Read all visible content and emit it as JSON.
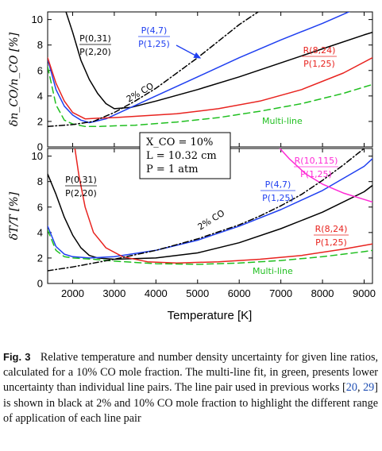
{
  "figure": {
    "number": "Fig. 3",
    "caption_parts": [
      {
        "t": "Relative temperature and number density uncertainty for given line ratios, calculated for a 10% CO mole fraction. The multi-line fit, in green, presents lower uncertainty than individual line pairs. The line pair used in previous works ["
      },
      {
        "t": "20",
        "cite": true
      },
      {
        "t": ", "
      },
      {
        "t": "29",
        "cite": true
      },
      {
        "t": "] is shown in black at 2% and 10% CO mole fraction to highlight the different range of application of each line pair"
      }
    ]
  },
  "conditions_box": [
    "X_CO = 10%",
    "L = 10.32 cm",
    "P = 1 atm"
  ],
  "colors": {
    "black": "#000000",
    "red": "#e8231f",
    "blue": "#1f3ff0",
    "green": "#1fbf1f",
    "magenta": "#ff2bd6"
  },
  "chart_data": [
    {
      "type": "line",
      "panel": "top",
      "ylabel": "δn_CO/n_CO [%]",
      "xlim": [
        1400,
        9200
      ],
      "ylim": [
        0,
        10.6
      ],
      "yticks": [
        0,
        2,
        4,
        6,
        8,
        10
      ],
      "xticks": [
        2000,
        3000,
        4000,
        5000,
        6000,
        7000,
        8000,
        9000
      ],
      "series": [
        {
          "name": "P(0,31) / P(2,20)",
          "color": "black",
          "style": "solid",
          "points": [
            [
              1800,
              11
            ],
            [
              2000,
              9
            ],
            [
              2200,
              6.8
            ],
            [
              2400,
              5.3
            ],
            [
              2600,
              4.2
            ],
            [
              2800,
              3.4
            ],
            [
              3000,
              3.0
            ],
            [
              3400,
              3.1
            ],
            [
              4000,
              3.6
            ],
            [
              5000,
              4.5
            ],
            [
              6000,
              5.5
            ],
            [
              7000,
              6.6
            ],
            [
              8000,
              7.7
            ],
            [
              9000,
              8.8
            ],
            [
              9200,
              9.0
            ]
          ]
        },
        {
          "name": "P(4,7) / P(1,25)",
          "color": "blue",
          "style": "solid",
          "points": [
            [
              1400,
              6.9
            ],
            [
              1600,
              4.5
            ],
            [
              1800,
              3.2
            ],
            [
              2000,
              2.5
            ],
            [
              2200,
              2.1
            ],
            [
              2400,
              1.9
            ],
            [
              2800,
              2.2
            ],
            [
              3200,
              2.8
            ],
            [
              4000,
              4.0
            ],
            [
              5000,
              5.5
            ],
            [
              6000,
              7.0
            ],
            [
              7000,
              8.4
            ],
            [
              8000,
              9.7
            ],
            [
              8700,
              10.7
            ]
          ]
        },
        {
          "name": "R(8,24) / P(1,25)",
          "color": "red",
          "style": "solid",
          "points": [
            [
              1400,
              7.0
            ],
            [
              1600,
              5.0
            ],
            [
              1800,
              3.6
            ],
            [
              2000,
              2.7
            ],
            [
              2300,
              2.2
            ],
            [
              2600,
              2.25
            ],
            [
              3000,
              2.3
            ],
            [
              3500,
              2.4
            ],
            [
              4500,
              2.6
            ],
            [
              5500,
              3.0
            ],
            [
              6500,
              3.6
            ],
            [
              7500,
              4.5
            ],
            [
              8500,
              5.8
            ],
            [
              9200,
              7.0
            ]
          ]
        },
        {
          "name": "Multi-line",
          "color": "green",
          "style": "dashed",
          "points": [
            [
              1400,
              6.3
            ],
            [
              1600,
              3.3
            ],
            [
              1800,
              2.1
            ],
            [
              2000,
              1.8
            ],
            [
              2300,
              1.6
            ],
            [
              2600,
              1.6
            ],
            [
              3000,
              1.65
            ],
            [
              3500,
              1.7
            ],
            [
              4500,
              1.95
            ],
            [
              5500,
              2.3
            ],
            [
              6500,
              2.8
            ],
            [
              7500,
              3.4
            ],
            [
              8500,
              4.2
            ],
            [
              9200,
              4.9
            ]
          ]
        },
        {
          "name": "2% CO",
          "color": "black",
          "style": "dashdot",
          "points": [
            [
              1400,
              1.6
            ],
            [
              2000,
              1.75
            ],
            [
              2500,
              2.0
            ],
            [
              3000,
              2.7
            ],
            [
              3500,
              3.6
            ],
            [
              4000,
              4.6
            ],
            [
              4500,
              5.8
            ],
            [
              5000,
              7.0
            ],
            [
              5500,
              8.3
            ],
            [
              6000,
              9.6
            ],
            [
              6500,
              10.7
            ]
          ]
        }
      ],
      "labels": {
        "p031": [
          "P(0,31)",
          "P(2,20)"
        ],
        "p47": [
          "P(4,7)",
          "P(1,25)"
        ],
        "r824": [
          "R(8,24)",
          "P(1,25)"
        ],
        "co2": "2% CO",
        "multi": "Multi-line"
      }
    },
    {
      "type": "line",
      "panel": "bottom",
      "ylabel": "δT/T [%]",
      "xlabel": "Temperature [K]",
      "xlim": [
        1400,
        9200
      ],
      "ylim": [
        0,
        10.6
      ],
      "yticks": [
        0,
        2,
        4,
        6,
        8,
        10
      ],
      "xticks": [
        2000,
        3000,
        4000,
        5000,
        6000,
        7000,
        8000,
        9000
      ],
      "series": [
        {
          "name": "P(0,31) / P(2,20)",
          "color": "black",
          "style": "solid",
          "points": [
            [
              1400,
              8.6
            ],
            [
              1600,
              7.0
            ],
            [
              1800,
              5.2
            ],
            [
              2000,
              3.8
            ],
            [
              2200,
              2.8
            ],
            [
              2400,
              2.2
            ],
            [
              2600,
              2.0
            ],
            [
              3000,
              1.9
            ],
            [
              4000,
              2.0
            ],
            [
              5000,
              2.4
            ],
            [
              6000,
              3.2
            ],
            [
              7000,
              4.3
            ],
            [
              8000,
              5.6
            ],
            [
              9000,
              7.2
            ],
            [
              9200,
              7.7
            ]
          ]
        },
        {
          "name": "P(4,7) / P(1,25)",
          "color": "blue",
          "style": "solid",
          "points": [
            [
              1400,
              4.5
            ],
            [
              1600,
              2.9
            ],
            [
              1800,
              2.3
            ],
            [
              2000,
              2.1
            ],
            [
              2400,
              2.0
            ],
            [
              3000,
              2.1
            ],
            [
              4000,
              2.6
            ],
            [
              5000,
              3.4
            ],
            [
              6000,
              4.5
            ],
            [
              7000,
              5.8
            ],
            [
              8000,
              7.3
            ],
            [
              9000,
              9.2
            ],
            [
              9200,
              9.8
            ]
          ]
        },
        {
          "name": "R(8,24) / P(1,25)",
          "color": "red",
          "style": "solid",
          "points": [
            [
              2050,
              10.7
            ],
            [
              2150,
              8.5
            ],
            [
              2300,
              6.0
            ],
            [
              2500,
              4.0
            ],
            [
              2800,
              2.8
            ],
            [
              3200,
              2.1
            ],
            [
              3800,
              1.7
            ],
            [
              4500,
              1.6
            ],
            [
              5500,
              1.7
            ],
            [
              6500,
              1.9
            ],
            [
              7500,
              2.2
            ],
            [
              8500,
              2.7
            ],
            [
              9200,
              3.1
            ]
          ]
        },
        {
          "name": "R(10,115) / P(1,25)",
          "color": "magenta",
          "style": "solid",
          "points": [
            [
              6950,
              10.7
            ],
            [
              7200,
              9.8
            ],
            [
              7600,
              8.6
            ],
            [
              8000,
              7.8
            ],
            [
              8500,
              7.1
            ],
            [
              9000,
              6.6
            ],
            [
              9200,
              6.4
            ]
          ]
        },
        {
          "name": "Multi-line",
          "color": "green",
          "style": "dashed",
          "points": [
            [
              1400,
              4.2
            ],
            [
              1600,
              2.6
            ],
            [
              1800,
              2.1
            ],
            [
              2000,
              2.0
            ],
            [
              2500,
              1.9
            ],
            [
              3000,
              1.75
            ],
            [
              4000,
              1.55
            ],
            [
              5000,
              1.5
            ],
            [
              6000,
              1.6
            ],
            [
              7000,
              1.8
            ],
            [
              8000,
              2.1
            ],
            [
              9000,
              2.5
            ],
            [
              9200,
              2.6
            ]
          ]
        },
        {
          "name": "2% CO",
          "color": "black",
          "style": "dashdot",
          "points": [
            [
              1400,
              1.0
            ],
            [
              2000,
              1.3
            ],
            [
              3000,
              1.9
            ],
            [
              4000,
              2.6
            ],
            [
              5000,
              3.5
            ],
            [
              6000,
              4.6
            ],
            [
              6500,
              5.3
            ],
            [
              7000,
              6.1
            ],
            [
              7500,
              7.0
            ],
            [
              8000,
              8.1
            ],
            [
              8500,
              9.3
            ],
            [
              9000,
              10.6
            ]
          ]
        }
      ],
      "labels": {
        "p031": [
          "P(0,31)",
          "P(2,20)"
        ],
        "p47": [
          "P(4,7)",
          "P(1,25)"
        ],
        "r824": [
          "R(8,24)",
          "P(1,25)"
        ],
        "r10": [
          "R(10,115)",
          "P(1,25)"
        ],
        "co2": "2% CO",
        "multi": "Multi-line"
      }
    }
  ]
}
